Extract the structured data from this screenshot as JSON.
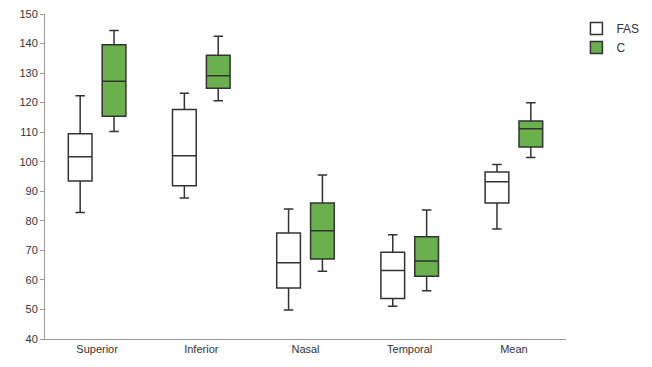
{
  "chart_data": {
    "type": "box",
    "categories": [
      "Superior",
      "Inferior",
      "Nasal",
      "Temporal",
      "Mean"
    ],
    "series": [
      {
        "name": "FAS",
        "color": "#ffffff",
        "min": [
          82.8,
          87.7,
          49.8,
          51.1,
          77.2
        ],
        "q1": [
          93.5,
          91.9,
          57.3,
          53.7,
          86.0
        ],
        "median": [
          101.7,
          102.0,
          65.8,
          63.2,
          93.2
        ],
        "q3": [
          109.5,
          117.7,
          75.9,
          69.4,
          96.5
        ],
        "max": [
          122.3,
          123.2,
          84.0,
          75.3,
          99.1
        ]
      },
      {
        "name": "C",
        "color": "#6ab04c",
        "min": [
          110.2,
          120.6,
          62.9,
          56.3,
          101.4
        ],
        "q1": [
          115.4,
          124.9,
          67.1,
          61.2,
          105.0
        ],
        "median": [
          127.2,
          129.1,
          76.6,
          66.4,
          111.2
        ],
        "q3": [
          139.6,
          136.0,
          86.0,
          74.6,
          113.8
        ],
        "max": [
          144.4,
          142.5,
          95.5,
          83.7,
          120.0
        ]
      }
    ],
    "ylim": [
      40,
      150
    ],
    "yticks": [
      40,
      50,
      60,
      70,
      80,
      90,
      100,
      110,
      120,
      130,
      140,
      150
    ],
    "grid": false,
    "legend": "right"
  }
}
